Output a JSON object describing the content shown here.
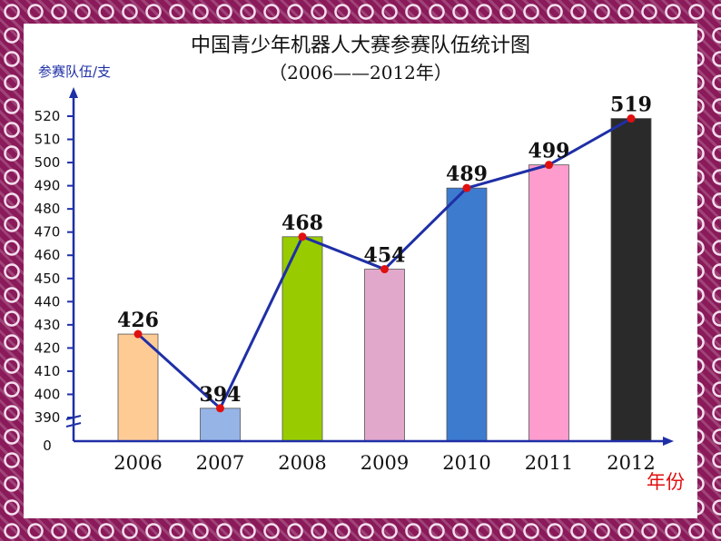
{
  "chart_data": {
    "type": "bar",
    "title": "中国青少年机器人大赛参赛队伍统计图",
    "subtitle": "（2006——2012年）",
    "ylabel": "参赛队伍/支",
    "xlabel": "年份",
    "categories": [
      "2006",
      "2007",
      "2008",
      "2009",
      "2010",
      "2011",
      "2012"
    ],
    "values": [
      426,
      394,
      468,
      454,
      489,
      499,
      519
    ],
    "data_labels": [
      "426",
      "394",
      "468",
      "454",
      "489",
      "499",
      "519"
    ],
    "bar_colors": [
      "#fecb95",
      "#96b4e6",
      "#98cc00",
      "#e2a8cc",
      "#3d7bcf",
      "#fe9ccd",
      "#2a2a2a"
    ],
    "line_overlay": true,
    "line_color": "#1f2fa6",
    "marker_color": "#e01010",
    "axis_color": "#1f2fa6",
    "axis_break": true,
    "y_zero_label": "0",
    "yticks": [
      390,
      400,
      410,
      420,
      430,
      440,
      450,
      460,
      470,
      480,
      490,
      500,
      510,
      520
    ],
    "ytick_labels": [
      "390",
      "400",
      "410",
      "420",
      "430",
      "440",
      "450",
      "460",
      "470",
      "480",
      "490",
      "500",
      "510",
      "520"
    ],
    "ylim": [
      390,
      520
    ]
  }
}
